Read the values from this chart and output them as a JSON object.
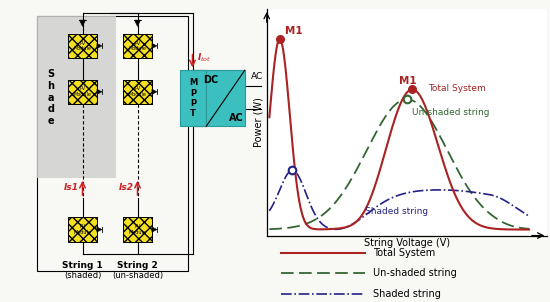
{
  "background_color": "#f8f8f5",
  "fig_width": 5.5,
  "fig_height": 3.02,
  "dpi": 100,
  "curve_total_color": "#aa2222",
  "curve_unshaded_color": "#336633",
  "curve_shaded_color": "#222288",
  "legend_total": "Total System",
  "legend_unshaded": "Un-shaded string",
  "legend_shaded": "Shaded string",
  "xlabel": "String Voltage (V)",
  "ylabel": "Power (W)",
  "shade_color": "#d0d0d0",
  "module_face": "#f5e020",
  "teal_color": "#3bbfbf",
  "red_arrow_color": "#cc2222"
}
